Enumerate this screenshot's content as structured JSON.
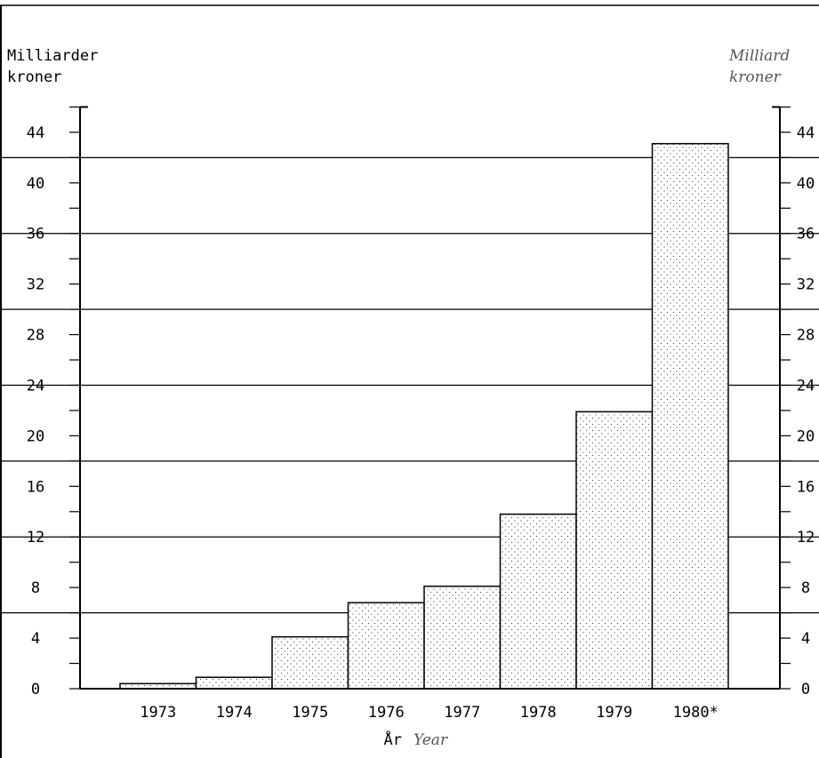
{
  "chart_data": {
    "type": "bar",
    "title": "",
    "ylabel_left": [
      "Milliarder",
      "kroner"
    ],
    "ylabel_right": [
      "Milliard",
      "kroner"
    ],
    "xlabel": "År",
    "xlabel_english": "Year",
    "categories": [
      "1973",
      "1974",
      "1975",
      "1976",
      "1977",
      "1978",
      "1979",
      "1980*"
    ],
    "values": [
      0.4,
      0.9,
      4.1,
      6.8,
      8.1,
      13.8,
      21.9,
      43.1
    ],
    "ylim": [
      0,
      46
    ],
    "yticks": [
      "0",
      "4",
      "8",
      "12",
      "16",
      "20",
      "24",
      "28",
      "32",
      "36",
      "40",
      "44"
    ],
    "ytick_values": [
      0,
      4,
      8,
      12,
      16,
      20,
      24,
      28,
      32,
      36,
      40,
      44
    ],
    "minor_tick_step": 2,
    "grid_values": [
      6,
      12,
      18,
      24,
      30,
      36,
      42
    ],
    "bar_pattern": "dotted",
    "grid": true
  }
}
